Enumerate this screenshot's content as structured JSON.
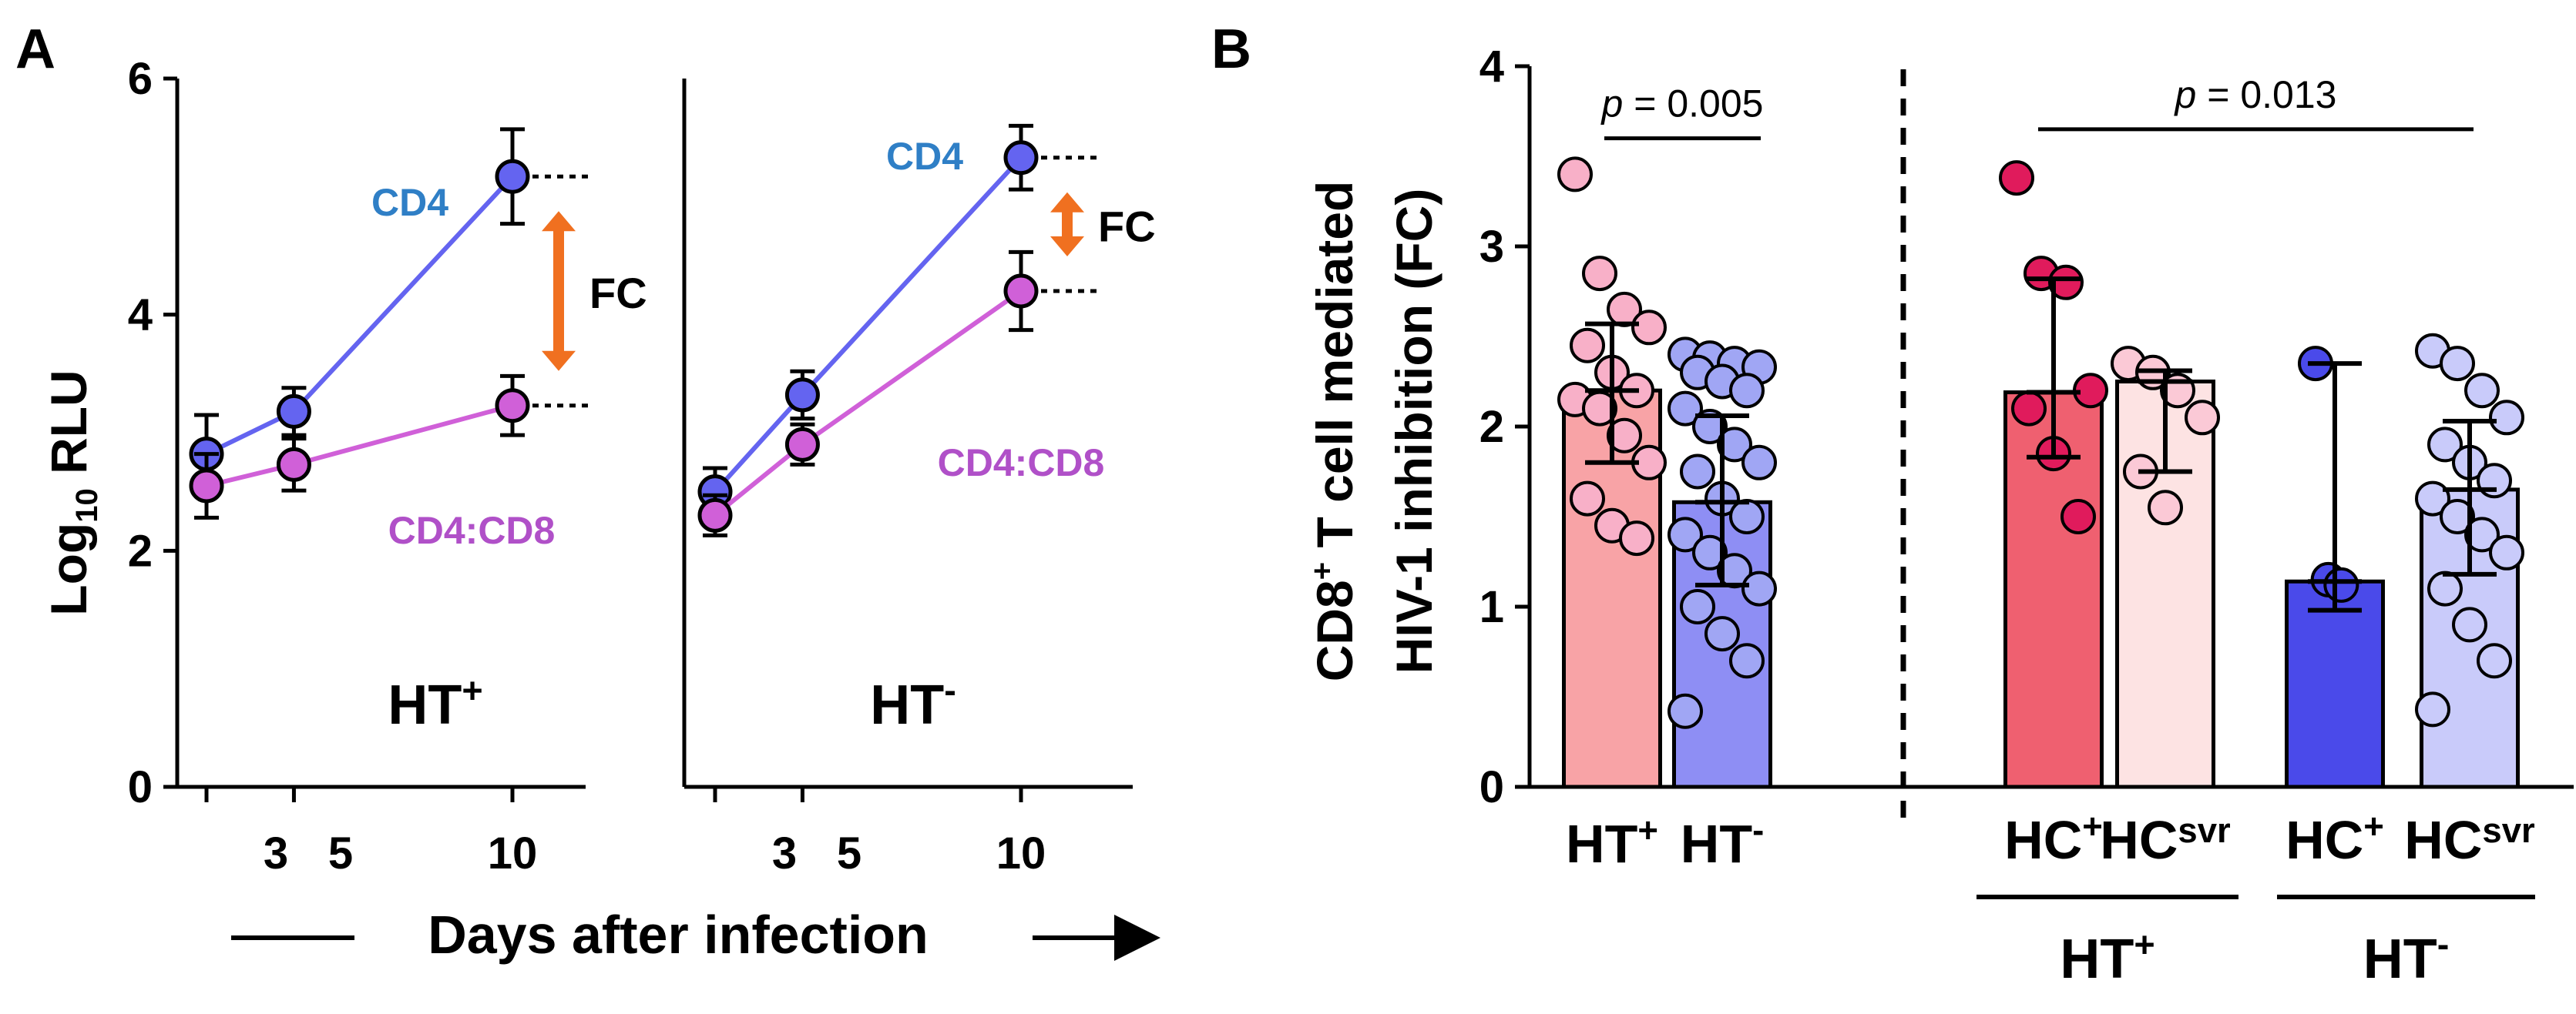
{
  "panel_labels": [
    "A",
    "B"
  ],
  "colors": {
    "cd4": "#6464f0",
    "cd4cd8": "#d060d8",
    "cd4_label": "#2f7fc6",
    "cd4cd8_label": "#b050c8",
    "fc_arrow": "#f07020",
    "ht_pos_bar": "#f8a3a6",
    "ht_neg_bar": "#8e8ef4",
    "hc_pos_htpos_bar": "#ef6070",
    "hcsvr_htpos_bar": "#fde3e3",
    "hc_pos_htneg_bar": "#4a4aea",
    "hcsvr_htneg_bar": "#c9cbfa",
    "pt_ht_pos": "#f8b0c8",
    "pt_ht_neg": "#a0a6f4",
    "pt_hc_pos_htpos": "#e01b5c",
    "pt_hcsvr_htpos": "#fbc9d6",
    "pt_hc_pos_htneg": "#4a4aea",
    "pt_hcsvr_htneg": "#c9cbfa"
  },
  "chart_data": [
    {
      "type": "line",
      "panel": "A",
      "ylabel": "Log10 RLU",
      "ylim": [
        0,
        6
      ],
      "yticks": [
        "0",
        "2",
        "4",
        "6"
      ],
      "xlabel": "Days after infection",
      "x_ticks": [
        "3",
        "5",
        "10"
      ],
      "subplots": [
        {
          "title": "HT+",
          "series": [
            {
              "name": "CD4",
              "x": [
                3,
                5,
                10
              ],
              "y": [
                2.82,
                3.18,
                5.17
              ],
              "err": [
                0.33,
                0.2,
                0.4
              ]
            },
            {
              "name": "CD4:CD8",
              "x": [
                3,
                5,
                10
              ],
              "y": [
                2.55,
                2.73,
                3.23
              ],
              "err": [
                0.27,
                0.22,
                0.25
              ]
            }
          ],
          "annotation": "FC"
        },
        {
          "title": "HT-",
          "series": [
            {
              "name": "CD4",
              "x": [
                3,
                5,
                10
              ],
              "y": [
                2.5,
                3.32,
                5.33
              ],
              "err": [
                0.2,
                0.2,
                0.27
              ]
            },
            {
              "name": "CD4:CD8",
              "x": [
                3,
                5,
                10
              ],
              "y": [
                2.3,
                2.9,
                4.2
              ],
              "err": [
                0.17,
                0.17,
                0.33
              ]
            }
          ],
          "annotation": "FC"
        }
      ]
    },
    {
      "type": "bar",
      "panel": "B",
      "ylabel_line1": "CD8+ T cell mediated",
      "ylabel_line2": "HIV-1 inhibition (FC)",
      "ylim": [
        0,
        4
      ],
      "yticks": [
        "0",
        "1",
        "2",
        "3",
        "4"
      ],
      "categories": [
        "HT+",
        "HT-",
        "HC+",
        "HCsvr",
        "HC+",
        "HCsvr"
      ],
      "group_labels": [
        {
          "label": "HT+",
          "categories": [
            2,
            3
          ]
        },
        {
          "label": "HT-",
          "categories": [
            4,
            5
          ]
        }
      ],
      "values": [
        2.2,
        1.58,
        2.19,
        2.25,
        1.14,
        1.65
      ],
      "err_low": [
        1.8,
        1.12,
        1.83,
        1.75,
        0.98,
        1.18
      ],
      "err_high": [
        2.57,
        2.06,
        2.82,
        2.31,
        2.35,
        2.03
      ],
      "points": [
        [
          3.4,
          2.85,
          2.65,
          2.55,
          2.45,
          2.3,
          2.2,
          2.15,
          2.1,
          1.95,
          1.8,
          1.6,
          1.45,
          1.38
        ],
        [
          2.4,
          2.38,
          2.35,
          2.33,
          2.3,
          2.25,
          2.2,
          2.1,
          2.0,
          1.9,
          1.8,
          1.75,
          1.6,
          1.5,
          1.4,
          1.3,
          1.2,
          1.1,
          1.0,
          0.85,
          0.7,
          0.42
        ],
        [
          3.38,
          2.85,
          2.8,
          2.2,
          2.1,
          1.85,
          1.5
        ],
        [
          2.35,
          2.3,
          2.2,
          2.05,
          1.75,
          1.55
        ],
        [
          2.35,
          1.15,
          1.12
        ],
        [
          2.42,
          2.35,
          2.2,
          2.05,
          1.9,
          1.8,
          1.7,
          1.6,
          1.5,
          1.4,
          1.3,
          1.1,
          0.9,
          0.7,
          0.43
        ]
      ],
      "comparisons": [
        {
          "label": "p = 0.005",
          "from": 0,
          "to": 1,
          "y": 3.6
        },
        {
          "label": "p = 0.013",
          "from": 2,
          "to": 5,
          "y": 3.65
        }
      ]
    }
  ]
}
